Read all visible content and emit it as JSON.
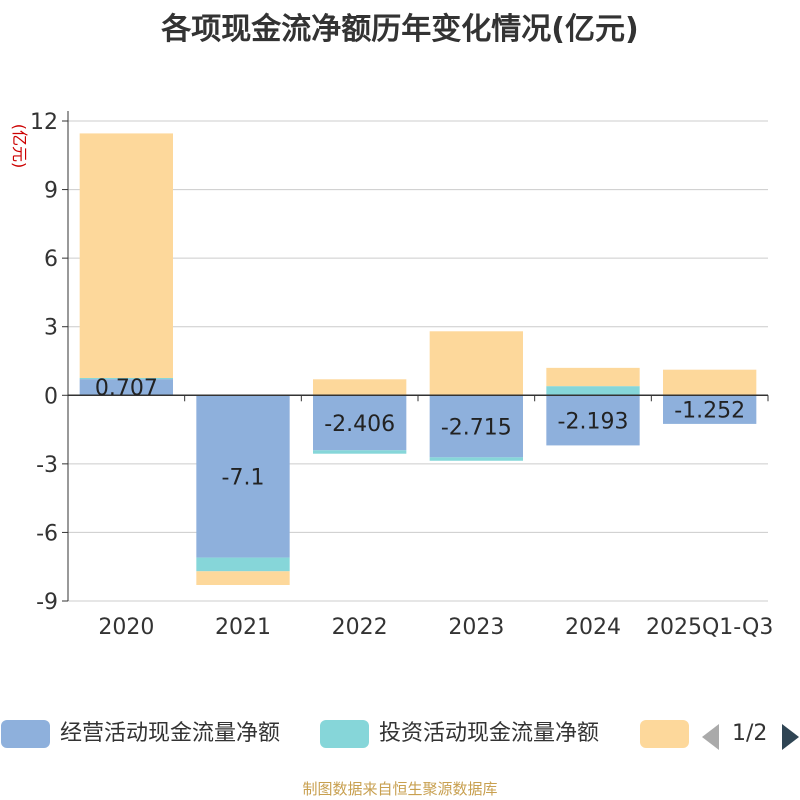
{
  "chart_data": {
    "type": "bar",
    "stacked": true,
    "title": "各项现金流净额历年变化情况(亿元)",
    "ylabel": "(亿元)",
    "xlabel": "",
    "ylim": [
      -9,
      12
    ],
    "yticks": [
      12,
      9,
      6,
      3,
      0,
      -3,
      -6,
      -9
    ],
    "categories": [
      "2020",
      "2021",
      "2022",
      "2023",
      "2024",
      "2025Q1-Q3"
    ],
    "series": [
      {
        "name": "经营活动现金流量净额",
        "color": "#8eb0dc",
        "values": [
          0.707,
          -7.1,
          -2.406,
          -2.715,
          -2.193,
          -1.252
        ],
        "labels": [
          "0.707",
          "-7.1",
          "-2.406",
          "-2.715",
          "-2.193",
          "-1.252"
        ]
      },
      {
        "name": "投资活动现金流量净额",
        "color": "#86d6d9",
        "values": [
          0.05,
          -0.6,
          -0.15,
          -0.15,
          0.4,
          0.02
        ]
      },
      {
        "name": "",
        "color": "#fdd89b",
        "values": [
          10.7,
          -0.6,
          0.7,
          2.8,
          0.8,
          1.1
        ]
      }
    ]
  },
  "legend": {
    "items": [
      {
        "label": "经营活动现金流量净额",
        "color": "#8eb0dc"
      },
      {
        "label": "投资活动现金流量净额",
        "color": "#86d6d9"
      },
      {
        "label": "",
        "color": "#fdd89b"
      }
    ],
    "page": "1/2"
  },
  "footer": "制图数据来自恒生聚源数据库"
}
